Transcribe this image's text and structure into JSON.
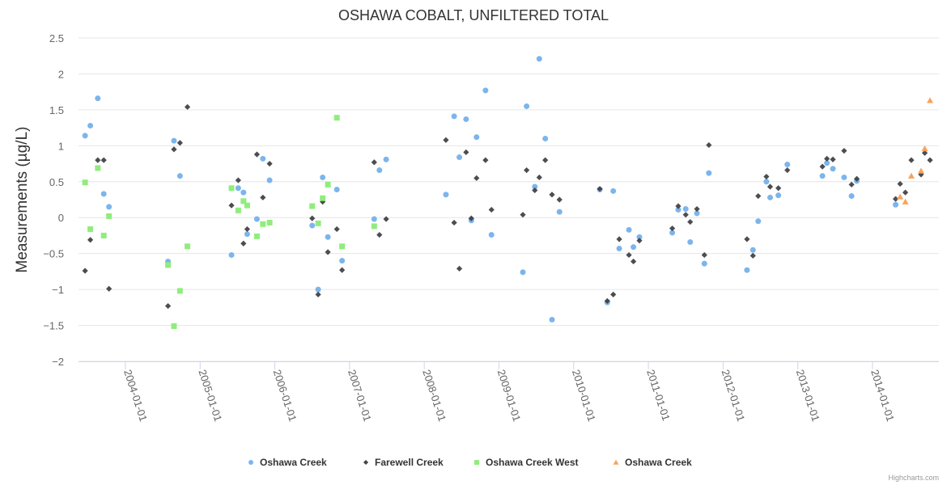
{
  "chart_data": {
    "type": "scatter",
    "title": "OSHAWA COBALT, UNFILTERED TOTAL",
    "xlabel": "",
    "ylabel": "Measurements (µg/L)",
    "x_units": "decimal year",
    "xlim": [
      2003.372,
      2014.889
    ],
    "ylim": [
      -2,
      2.5
    ],
    "yticks": [
      -2,
      -1.5,
      -1,
      -0.5,
      0,
      0.5,
      1,
      1.5,
      2,
      2.5
    ],
    "ytick_labels": [
      "−2",
      "−1.5",
      "−1",
      "−0.5",
      "0",
      "0.5",
      "1",
      "1.5",
      "2",
      "2.5"
    ],
    "xticks": [
      2004,
      2005,
      2006,
      2007,
      2008,
      2009,
      2010,
      2011,
      2012,
      2013,
      2014
    ],
    "xtick_labels": [
      "2004-01-01",
      "2005-01-01",
      "2006-01-01",
      "2007-01-01",
      "2008-01-01",
      "2009-01-01",
      "2010-01-01",
      "2011-01-01",
      "2012-01-01",
      "2013-01-01",
      "2014-01-01"
    ],
    "grid": true,
    "legend_position": "bottom",
    "credits": "Highcharts.com",
    "series": [
      {
        "name": "Oshawa Creek",
        "color": "#7cb5ec",
        "marker": "circle",
        "points": [
          [
            2003.46,
            1.14
          ],
          [
            2003.53,
            1.28
          ],
          [
            2003.63,
            1.66
          ],
          [
            2003.71,
            0.33
          ],
          [
            2003.78,
            0.15
          ],
          [
            2004.57,
            -0.61
          ],
          [
            2004.65,
            1.07
          ],
          [
            2004.73,
            0.58
          ],
          [
            2005.42,
            -0.52
          ],
          [
            2005.51,
            0.41
          ],
          [
            2005.58,
            0.35
          ],
          [
            2005.63,
            -0.23
          ],
          [
            2005.76,
            -0.02
          ],
          [
            2005.84,
            0.82
          ],
          [
            2005.93,
            0.52
          ],
          [
            2006.5,
            -0.11
          ],
          [
            2006.58,
            -1.0
          ],
          [
            2006.64,
            0.56
          ],
          [
            2006.71,
            -0.27
          ],
          [
            2006.83,
            0.39
          ],
          [
            2006.9,
            -0.6
          ],
          [
            2007.33,
            -0.02
          ],
          [
            2007.4,
            0.66
          ],
          [
            2007.49,
            0.81
          ],
          [
            2008.29,
            0.32
          ],
          [
            2008.4,
            1.41
          ],
          [
            2008.47,
            0.84
          ],
          [
            2008.56,
            1.37
          ],
          [
            2008.63,
            -0.04
          ],
          [
            2008.7,
            1.12
          ],
          [
            2008.82,
            1.77
          ],
          [
            2008.9,
            -0.24
          ],
          [
            2009.32,
            -0.76
          ],
          [
            2009.37,
            1.55
          ],
          [
            2009.48,
            0.43
          ],
          [
            2009.54,
            2.21
          ],
          [
            2009.62,
            1.1
          ],
          [
            2009.71,
            -1.42
          ],
          [
            2009.81,
            0.08
          ],
          [
            2010.35,
            0.39
          ],
          [
            2010.45,
            -1.18
          ],
          [
            2010.53,
            0.37
          ],
          [
            2010.61,
            -0.43
          ],
          [
            2010.74,
            -0.17
          ],
          [
            2010.8,
            -0.41
          ],
          [
            2010.88,
            -0.27
          ],
          [
            2011.32,
            -0.21
          ],
          [
            2011.4,
            0.11
          ],
          [
            2011.5,
            0.12
          ],
          [
            2011.56,
            -0.34
          ],
          [
            2011.65,
            0.06
          ],
          [
            2011.75,
            -0.64
          ],
          [
            2011.81,
            0.62
          ],
          [
            2012.32,
            -0.73
          ],
          [
            2012.4,
            -0.45
          ],
          [
            2012.47,
            -0.05
          ],
          [
            2012.58,
            0.5
          ],
          [
            2012.63,
            0.28
          ],
          [
            2012.74,
            0.31
          ],
          [
            2012.86,
            0.74
          ],
          [
            2013.33,
            0.58
          ],
          [
            2013.39,
            0.76
          ],
          [
            2013.47,
            0.68
          ],
          [
            2013.62,
            0.56
          ],
          [
            2013.72,
            0.3
          ],
          [
            2013.79,
            0.51
          ],
          [
            2014.31,
            0.18
          ]
        ]
      },
      {
        "name": "Farewell Creek",
        "color": "#434348",
        "marker": "diamond",
        "points": [
          [
            2003.46,
            -0.74
          ],
          [
            2003.53,
            -0.31
          ],
          [
            2003.63,
            0.8
          ],
          [
            2003.71,
            0.8
          ],
          [
            2003.78,
            -0.99
          ],
          [
            2004.57,
            -1.23
          ],
          [
            2004.65,
            0.95
          ],
          [
            2004.73,
            1.04
          ],
          [
            2004.83,
            1.54
          ],
          [
            2005.42,
            0.17
          ],
          [
            2005.51,
            0.52
          ],
          [
            2005.58,
            -0.36
          ],
          [
            2005.63,
            -0.16
          ],
          [
            2005.76,
            0.88
          ],
          [
            2005.84,
            0.28
          ],
          [
            2005.93,
            0.75
          ],
          [
            2006.5,
            -0.01
          ],
          [
            2006.58,
            -1.07
          ],
          [
            2006.64,
            0.22
          ],
          [
            2006.71,
            -0.48
          ],
          [
            2006.83,
            -0.16
          ],
          [
            2006.9,
            -0.73
          ],
          [
            2007.33,
            0.77
          ],
          [
            2007.4,
            -0.24
          ],
          [
            2007.49,
            -0.02
          ],
          [
            2008.29,
            1.08
          ],
          [
            2008.4,
            -0.07
          ],
          [
            2008.47,
            -0.71
          ],
          [
            2008.56,
            0.91
          ],
          [
            2008.63,
            -0.01
          ],
          [
            2008.7,
            0.55
          ],
          [
            2008.82,
            0.8
          ],
          [
            2008.9,
            0.11
          ],
          [
            2009.32,
            0.04
          ],
          [
            2009.37,
            0.66
          ],
          [
            2009.48,
            0.38
          ],
          [
            2009.54,
            0.56
          ],
          [
            2009.62,
            0.8
          ],
          [
            2009.71,
            0.32
          ],
          [
            2009.81,
            0.25
          ],
          [
            2010.35,
            0.4
          ],
          [
            2010.45,
            -1.16
          ],
          [
            2010.53,
            -1.07
          ],
          [
            2010.61,
            -0.3
          ],
          [
            2010.74,
            -0.52
          ],
          [
            2010.8,
            -0.61
          ],
          [
            2010.88,
            -0.32
          ],
          [
            2011.32,
            -0.15
          ],
          [
            2011.4,
            0.16
          ],
          [
            2011.5,
            0.04
          ],
          [
            2011.56,
            -0.06
          ],
          [
            2011.65,
            0.12
          ],
          [
            2011.75,
            -0.52
          ],
          [
            2011.81,
            1.01
          ],
          [
            2012.32,
            -0.3
          ],
          [
            2012.4,
            -0.53
          ],
          [
            2012.47,
            0.3
          ],
          [
            2012.58,
            0.57
          ],
          [
            2012.63,
            0.43
          ],
          [
            2012.74,
            0.41
          ],
          [
            2012.86,
            0.66
          ],
          [
            2013.33,
            0.71
          ],
          [
            2013.39,
            0.82
          ],
          [
            2013.47,
            0.81
          ],
          [
            2013.62,
            0.93
          ],
          [
            2013.72,
            0.46
          ],
          [
            2013.79,
            0.54
          ],
          [
            2014.31,
            0.26
          ],
          [
            2014.37,
            0.47
          ],
          [
            2014.44,
            0.35
          ],
          [
            2014.52,
            0.8
          ],
          [
            2014.65,
            0.6
          ],
          [
            2014.7,
            0.9
          ],
          [
            2014.77,
            0.8
          ]
        ]
      },
      {
        "name": "Oshawa Creek West",
        "color": "#90ed7d",
        "marker": "square",
        "points": [
          [
            2003.46,
            0.49
          ],
          [
            2003.53,
            -0.16
          ],
          [
            2003.63,
            0.69
          ],
          [
            2003.71,
            -0.25
          ],
          [
            2003.78,
            0.02
          ],
          [
            2004.57,
            -0.66
          ],
          [
            2004.65,
            -1.51
          ],
          [
            2004.73,
            -1.02
          ],
          [
            2004.83,
            -0.4
          ],
          [
            2005.42,
            0.41
          ],
          [
            2005.51,
            0.1
          ],
          [
            2005.58,
            0.23
          ],
          [
            2005.63,
            0.17
          ],
          [
            2005.76,
            -0.26
          ],
          [
            2005.84,
            -0.09
          ],
          [
            2005.93,
            -0.07
          ],
          [
            2006.5,
            0.16
          ],
          [
            2006.58,
            -0.08
          ],
          [
            2006.64,
            0.27
          ],
          [
            2006.71,
            0.46
          ],
          [
            2006.83,
            1.39
          ],
          [
            2006.9,
            -0.4
          ],
          [
            2007.33,
            -0.12
          ]
        ]
      },
      {
        "name": "Oshawa Creek",
        "color": "#f7a35c",
        "marker": "triangle",
        "points": [
          [
            2014.37,
            0.29
          ],
          [
            2014.44,
            0.22
          ],
          [
            2014.52,
            0.58
          ],
          [
            2014.65,
            0.65
          ],
          [
            2014.7,
            0.96
          ],
          [
            2014.77,
            1.63
          ]
        ]
      }
    ]
  }
}
